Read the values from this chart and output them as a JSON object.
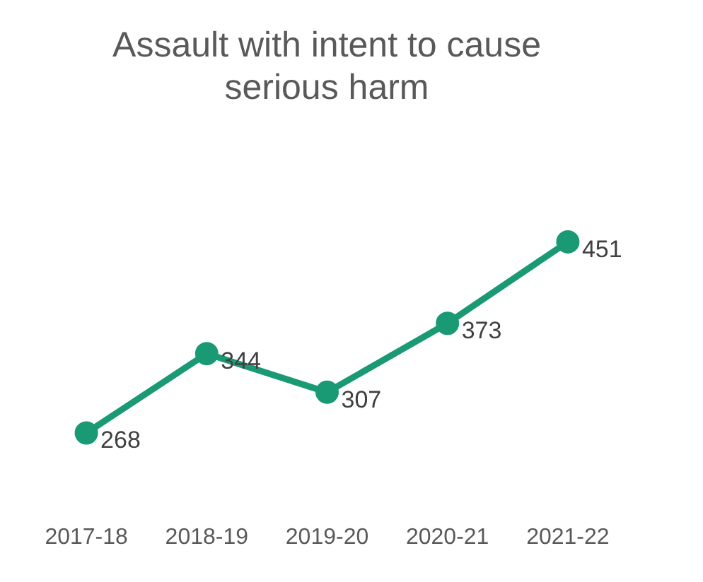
{
  "chart_data": {
    "type": "line",
    "title": "Assault with intent to cause serious harm",
    "categories": [
      "2017-18",
      "2018-19",
      "2019-20",
      "2020-21",
      "2021-22"
    ],
    "series": [
      {
        "color": "#1a9a74",
        "values": [
          268,
          344,
          307,
          373,
          451
        ]
      }
    ],
    "tick_labels": "x",
    "data_labels": true,
    "grid": false,
    "legend": false,
    "marker": "circle",
    "line_style": "solid"
  }
}
